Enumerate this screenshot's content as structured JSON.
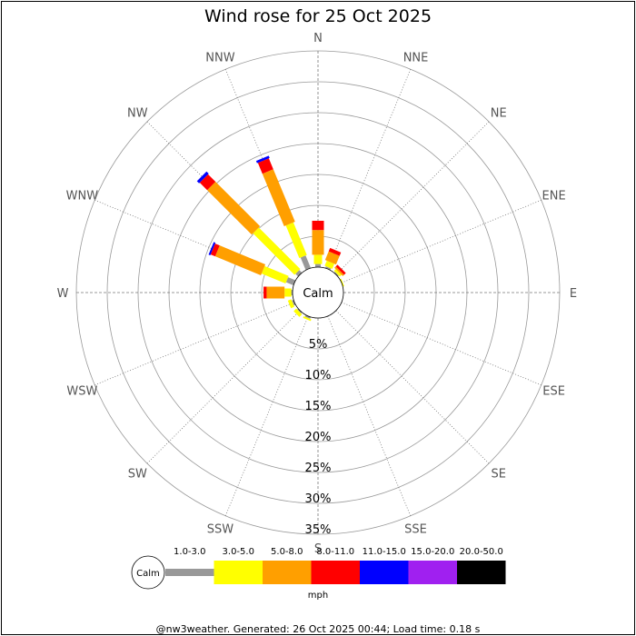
{
  "chart_data": {
    "type": "wind-rose",
    "title": "Wind rose for 25 Oct 2025",
    "center_label": "Calm",
    "directions": [
      "N",
      "NNE",
      "NE",
      "ENE",
      "E",
      "ESE",
      "SE",
      "SSE",
      "S",
      "SSW",
      "SW",
      "WSW",
      "W",
      "WNW",
      "NW",
      "NNW"
    ],
    "radial_ticks": [
      "5%",
      "10%",
      "15%",
      "20%",
      "25%",
      "30%",
      "35%"
    ],
    "radial_max_percent": 35,
    "speed_bins": [
      {
        "label": "1.0-3.0",
        "color": "#999999"
      },
      {
        "label": "3.0-5.0",
        "color": "#ffff00"
      },
      {
        "label": "5.0-8.0",
        "color": "#ff9f00"
      },
      {
        "label": "8.0-11.0",
        "color": "#ff0000"
      },
      {
        "label": "11.0-15.0",
        "color": "#0000ff"
      },
      {
        "label": "15.0-20.0",
        "color": "#a020f0"
      },
      {
        "label": "20.0-50.0",
        "color": "#000000"
      }
    ],
    "legend_calm_label": "Calm",
    "units": "mph",
    "frequencies": {
      "N": [
        0.5,
        1.5,
        4.0,
        1.5,
        0,
        0,
        0
      ],
      "NNE": [
        0.3,
        0.9,
        1.5,
        0.6,
        0,
        0,
        0
      ],
      "NE": [
        0.2,
        0.4,
        0.3,
        0.4,
        0,
        0,
        0
      ],
      "ENE": [
        0.0,
        0.2,
        0.0,
        0.0,
        0,
        0,
        0
      ],
      "E": [
        0,
        0,
        0,
        0,
        0,
        0,
        0
      ],
      "ESE": [
        0,
        0,
        0,
        0,
        0,
        0,
        0
      ],
      "SE": [
        0,
        0,
        0,
        0,
        0,
        0,
        0
      ],
      "SSE": [
        0,
        0,
        0,
        0,
        0,
        0,
        0
      ],
      "S": [
        0,
        0,
        0,
        0,
        0,
        0,
        0
      ],
      "SSW": [
        0.3,
        0.3,
        0,
        0,
        0,
        0,
        0
      ],
      "SW": [
        0.2,
        0.6,
        0,
        0,
        0,
        0,
        0
      ],
      "WSW": [
        0.3,
        0.6,
        0,
        0,
        0,
        0,
        0
      ],
      "W": [
        0.2,
        1.1,
        2.9,
        0.5,
        0,
        0,
        0
      ],
      "WNW": [
        1.3,
        4.2,
        8.0,
        0.8,
        0.3,
        0,
        0
      ],
      "NW": [
        0.6,
        9.5,
        10.2,
        1.7,
        0.5,
        0,
        0
      ],
      "NNW": [
        2.2,
        5.7,
        9.2,
        1.9,
        0.4,
        0,
        0
      ]
    }
  },
  "footer": "@nw3weather. Generated: 26 Oct 2025 00:44; Load time: 0.18 s"
}
